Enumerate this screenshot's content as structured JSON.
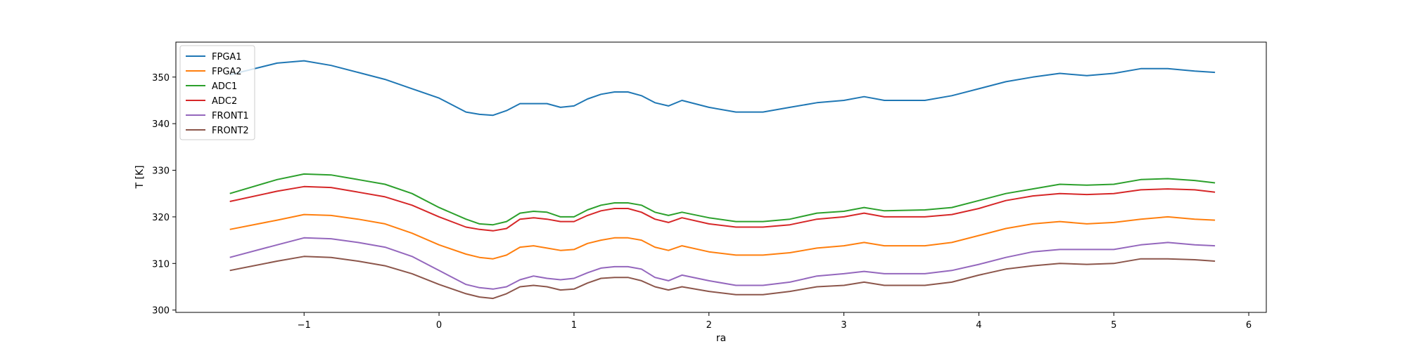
{
  "chart_data": {
    "type": "line",
    "title": "",
    "xlabel": "ra",
    "ylabel": "T [K]",
    "xlim": [
      -1.95,
      6.13
    ],
    "ylim": [
      299.5,
      357.5
    ],
    "xticks": [
      -1,
      0,
      1,
      2,
      3,
      4,
      5,
      6
    ],
    "xtick_labels": [
      "−1",
      "0",
      "1",
      "2",
      "3",
      "4",
      "5",
      "6"
    ],
    "yticks": [
      300,
      310,
      320,
      330,
      340,
      350
    ],
    "ytick_labels": [
      "300",
      "310",
      "320",
      "330",
      "340",
      "350"
    ],
    "grid": false,
    "legend_position": "upper-left",
    "x": [
      -1.55,
      -1.2,
      -1.0,
      -0.8,
      -0.6,
      -0.4,
      -0.2,
      0.0,
      0.2,
      0.3,
      0.4,
      0.5,
      0.6,
      0.7,
      0.8,
      0.9,
      1.0,
      1.1,
      1.2,
      1.3,
      1.4,
      1.5,
      1.6,
      1.7,
      1.8,
      2.0,
      2.2,
      2.4,
      2.6,
      2.8,
      3.0,
      3.15,
      3.3,
      3.6,
      3.8,
      4.0,
      4.2,
      4.4,
      4.6,
      4.8,
      5.0,
      5.2,
      5.4,
      5.6,
      5.75
    ],
    "series": [
      {
        "name": "FPGA1",
        "color": "#1f77b4",
        "values": [
          350.5,
          353.0,
          353.5,
          352.5,
          351.0,
          349.5,
          347.5,
          345.5,
          342.5,
          342.0,
          341.8,
          342.8,
          344.3,
          344.3,
          344.3,
          343.5,
          343.8,
          345.3,
          346.3,
          346.8,
          346.8,
          346.0,
          344.5,
          343.8,
          345.0,
          343.5,
          342.5,
          342.5,
          343.5,
          344.5,
          345.0,
          345.8,
          345.0,
          345.0,
          346.0,
          347.5,
          349.0,
          350.0,
          350.8,
          350.3,
          350.8,
          351.8,
          351.8,
          351.3,
          351.0
        ]
      },
      {
        "name": "FPGA2",
        "color": "#ff7f0e",
        "values": [
          317.3,
          319.3,
          320.5,
          320.3,
          319.5,
          318.5,
          316.5,
          314.0,
          312.0,
          311.3,
          311.0,
          311.8,
          313.5,
          313.8,
          313.3,
          312.8,
          313.0,
          314.3,
          315.0,
          315.5,
          315.5,
          315.0,
          313.5,
          312.8,
          313.8,
          312.5,
          311.8,
          311.8,
          312.3,
          313.3,
          313.8,
          314.5,
          313.8,
          313.8,
          314.5,
          316.0,
          317.5,
          318.5,
          319.0,
          318.5,
          318.8,
          319.5,
          320.0,
          319.5,
          319.3
        ]
      },
      {
        "name": "ADC1",
        "color": "#2ca02c",
        "values": [
          325.0,
          328.0,
          329.2,
          329.0,
          328.0,
          327.0,
          325.0,
          322.0,
          319.5,
          318.5,
          318.3,
          319.0,
          320.8,
          321.2,
          321.0,
          320.0,
          320.0,
          321.5,
          322.5,
          323.0,
          323.0,
          322.5,
          321.0,
          320.3,
          321.0,
          319.8,
          319.0,
          319.0,
          319.5,
          320.8,
          321.2,
          322.0,
          321.3,
          321.5,
          322.0,
          323.5,
          325.0,
          326.0,
          327.0,
          326.8,
          327.0,
          328.0,
          328.2,
          327.8,
          327.3
        ]
      },
      {
        "name": "ADC2",
        "color": "#d62728",
        "values": [
          323.3,
          325.5,
          326.5,
          326.3,
          325.3,
          324.3,
          322.5,
          320.0,
          317.8,
          317.3,
          317.0,
          317.5,
          319.5,
          319.8,
          319.5,
          319.0,
          319.0,
          320.3,
          321.3,
          321.8,
          321.8,
          321.0,
          319.5,
          318.8,
          319.8,
          318.5,
          317.8,
          317.8,
          318.3,
          319.5,
          320.0,
          320.8,
          320.0,
          320.0,
          320.5,
          321.8,
          323.5,
          324.5,
          325.0,
          324.8,
          325.0,
          325.8,
          326.0,
          325.8,
          325.3
        ]
      },
      {
        "name": "FRONT1",
        "color": "#9467bd",
        "values": [
          311.3,
          314.0,
          315.5,
          315.3,
          314.5,
          313.5,
          311.5,
          308.5,
          305.5,
          304.8,
          304.5,
          305.0,
          306.5,
          307.3,
          306.8,
          306.5,
          306.8,
          308.0,
          309.0,
          309.3,
          309.3,
          308.8,
          307.0,
          306.3,
          307.5,
          306.3,
          305.3,
          305.3,
          306.0,
          307.3,
          307.8,
          308.3,
          307.8,
          307.8,
          308.5,
          309.8,
          311.3,
          312.5,
          313.0,
          313.0,
          313.0,
          314.0,
          314.5,
          314.0,
          313.8
        ]
      },
      {
        "name": "FRONT2",
        "color": "#8c564b",
        "values": [
          308.5,
          310.5,
          311.5,
          311.3,
          310.5,
          309.5,
          307.8,
          305.5,
          303.5,
          302.8,
          302.5,
          303.5,
          305.0,
          305.3,
          305.0,
          304.3,
          304.5,
          305.8,
          306.8,
          307.0,
          307.0,
          306.3,
          305.0,
          304.3,
          305.0,
          304.0,
          303.3,
          303.3,
          304.0,
          305.0,
          305.3,
          306.0,
          305.3,
          305.3,
          306.0,
          307.5,
          308.8,
          309.5,
          310.0,
          309.8,
          310.0,
          311.0,
          311.0,
          310.8,
          310.5
        ]
      }
    ]
  }
}
